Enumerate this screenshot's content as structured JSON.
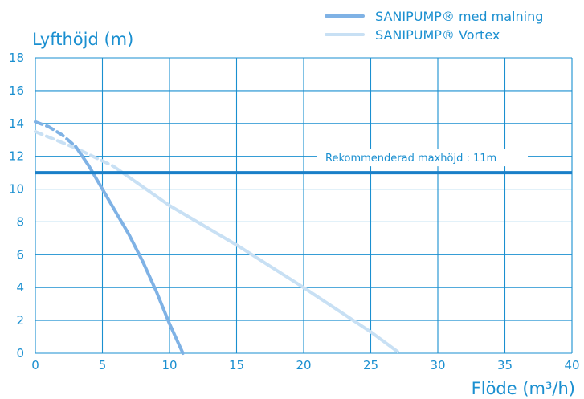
{
  "chart_data": {
    "type": "line",
    "xlabel": "Flöde (m³/h)",
    "ylabel": "Lyfthöjd (m)",
    "xlim": [
      0,
      40
    ],
    "ylim": [
      0,
      18
    ],
    "xticks": [
      0,
      5,
      10,
      15,
      20,
      25,
      30,
      35,
      40
    ],
    "yticks": [
      0,
      2,
      4,
      6,
      8,
      10,
      12,
      14,
      16,
      18
    ],
    "grid": true,
    "legend_position": "top-right",
    "series": [
      {
        "name": "SANIPUMP® med malning",
        "color": "#7fb2e5",
        "dashed_x": [
          0,
          1,
          2,
          3
        ],
        "dashed_y": [
          14.1,
          13.8,
          13.3,
          12.6
        ],
        "x": [
          3,
          4,
          5,
          6,
          7,
          8,
          9,
          10,
          11
        ],
        "y": [
          12.6,
          11.4,
          10.0,
          8.6,
          7.2,
          5.6,
          3.8,
          1.8,
          0
        ]
      },
      {
        "name": "SANIPUMP® Vortex",
        "color": "#c8e0f4",
        "dashed_x": [
          0,
          3,
          5.8
        ],
        "dashed_y": [
          13.5,
          12.5,
          11.4
        ],
        "x": [
          5.8,
          10,
          15,
          20,
          25,
          27
        ],
        "y": [
          11.4,
          9.0,
          6.6,
          4.0,
          1.3,
          0.1
        ]
      }
    ],
    "reference_line": {
      "y": 11,
      "label": "Rekommenderad maxhöjd : 11m",
      "color": "#1a7fc8"
    }
  }
}
